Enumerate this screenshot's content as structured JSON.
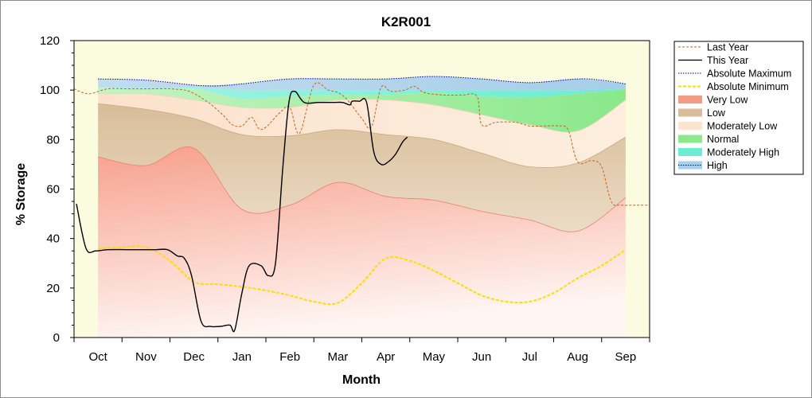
{
  "chart_data": {
    "type": "area",
    "title": "K2R001",
    "xlabel": "Month",
    "ylabel": "% Storage",
    "ylim": [
      0,
      120
    ],
    "yticks": [
      0,
      20,
      40,
      60,
      80,
      100,
      120
    ],
    "xlim": [
      -0.5,
      11.5
    ],
    "categories": [
      "Oct",
      "Nov",
      "Dec",
      "Jan",
      "Feb",
      "Mar",
      "Apr",
      "May",
      "Jun",
      "Jul",
      "Aug",
      "Sep"
    ],
    "bands_x": [
      0,
      1,
      2,
      3,
      4,
      5,
      6,
      7,
      8,
      9,
      10,
      11
    ],
    "band_boundaries": {
      "very_low_top": [
        73,
        69.5,
        76.5,
        51.8,
        53.5,
        62.7,
        57,
        55.5,
        51,
        47.5,
        43,
        56.5
      ],
      "low_top": [
        94.5,
        92.2,
        88.5,
        82,
        81.5,
        84,
        82,
        80,
        74.5,
        69,
        70.5,
        81
      ],
      "moderately_low_top": [
        98.5,
        98.5,
        96,
        93,
        93,
        96,
        96,
        94,
        90,
        86,
        83.5,
        96
      ],
      "normal_top": [
        100.8,
        100.5,
        100.5,
        96.5,
        97.5,
        98,
        98,
        99,
        97.5,
        97,
        98.5,
        100.3
      ],
      "moderately_high_top": [
        101,
        100.8,
        101,
        100,
        100,
        100,
        100,
        100,
        100,
        100,
        100,
        100.5
      ],
      "high_top": [
        104.5,
        104,
        102,
        102.5,
        104.5,
        104.5,
        104.5,
        105.5,
        104.5,
        103,
        104.5,
        102.5
      ]
    },
    "series": [
      {
        "name": "Last Year",
        "style": "dashed",
        "color": "#c8641e",
        "x": [
          -0.5,
          -0.2,
          0.2,
          0.6,
          1.0,
          1.5,
          1.9,
          2.3,
          2.6,
          2.8,
          3.0,
          3.2,
          3.35,
          3.5,
          3.8,
          4.0,
          4.2,
          4.5,
          4.8,
          5.0,
          5.2,
          5.5,
          5.7,
          5.9,
          6.1,
          6.4,
          6.6,
          6.8,
          7.2,
          7.6,
          7.9,
          8.0,
          8.3,
          8.7,
          9.0,
          9.3,
          9.6,
          9.8,
          10.0,
          10.3,
          10.5,
          10.7,
          10.9,
          11.2,
          11.5
        ],
        "values": [
          100.5,
          98.5,
          100.5,
          100.5,
          100.5,
          100.5,
          99.5,
          95,
          90,
          86,
          85.5,
          89,
          84.5,
          85,
          91,
          93,
          82.5,
          102,
          100,
          99,
          96,
          88.5,
          85,
          101,
          99.5,
          100,
          101.5,
          99,
          98,
          98,
          97.5,
          86,
          87,
          87,
          85.5,
          85.5,
          85.5,
          84,
          71,
          71.5,
          69,
          55,
          53.5,
          53.5,
          53.5
        ]
      },
      {
        "name": "This Year",
        "style": "solid",
        "color": "#000000",
        "x": [
          -0.45,
          -0.25,
          -0.05,
          0.2,
          0.6,
          1.0,
          1.2,
          1.45,
          1.65,
          1.8,
          1.95,
          2.15,
          2.35,
          2.55,
          2.75,
          2.85,
          3.0,
          3.15,
          3.4,
          3.55,
          3.7,
          3.85,
          3.98,
          4.1,
          4.3,
          4.6,
          4.9,
          5.1,
          5.25,
          5.3,
          5.45,
          5.6,
          5.75,
          5.9,
          6.05,
          6.2,
          6.35,
          6.45
        ],
        "values": [
          54,
          36,
          35,
          35.5,
          35.5,
          35.5,
          35.5,
          35.5,
          33,
          32,
          25,
          6.5,
          4.5,
          4.5,
          5,
          3,
          18,
          29,
          29,
          25,
          30,
          68,
          95,
          99.5,
          95,
          95,
          95,
          95,
          94,
          95.5,
          95.5,
          95,
          75,
          70,
          71,
          74,
          79,
          81
        ]
      },
      {
        "name": "Absolute Maximum",
        "style": "dotted",
        "color": "#0000b4",
        "x": [
          0,
          1,
          2,
          2.5,
          3,
          4,
          5,
          6,
          7,
          8,
          9,
          10,
          10.5,
          11
        ],
        "values": [
          104.5,
          104,
          102,
          101.7,
          102.5,
          104.5,
          104.5,
          104.5,
          105.5,
          104.5,
          103,
          104.5,
          104,
          102.5
        ]
      },
      {
        "name": "Absolute Minimum",
        "style": "dashed",
        "color": "#ffdd00",
        "x": [
          0,
          0.5,
          1,
          1.5,
          2,
          2.5,
          3,
          3.5,
          4,
          4.5,
          5,
          5.5,
          6,
          6.5,
          7,
          7.5,
          8,
          8.5,
          9,
          9.5,
          10,
          10.5,
          11
        ],
        "values": [
          36,
          36.5,
          36.5,
          31,
          22.5,
          21.5,
          20.5,
          19,
          17,
          14.5,
          14,
          22,
          32,
          31,
          27,
          22,
          17,
          14.5,
          14.5,
          18,
          24,
          29,
          35.5
        ]
      }
    ],
    "legend": {
      "position": "right",
      "entries": [
        "Last Year",
        "This Year",
        "Absolute Maximum",
        "Absolute Minimum",
        "Very Low",
        "Low",
        "Moderately Low",
        "Normal",
        "Moderately High",
        "High"
      ]
    },
    "colors": {
      "plot_background": "#fbfbe0",
      "very_low": "#f7a08c",
      "low": "#dcc3a0",
      "moderately_low": "#fde6d0",
      "normal": "#98ec98",
      "moderately_high": "#78f0d8",
      "high": "#a8d0ec"
    }
  }
}
